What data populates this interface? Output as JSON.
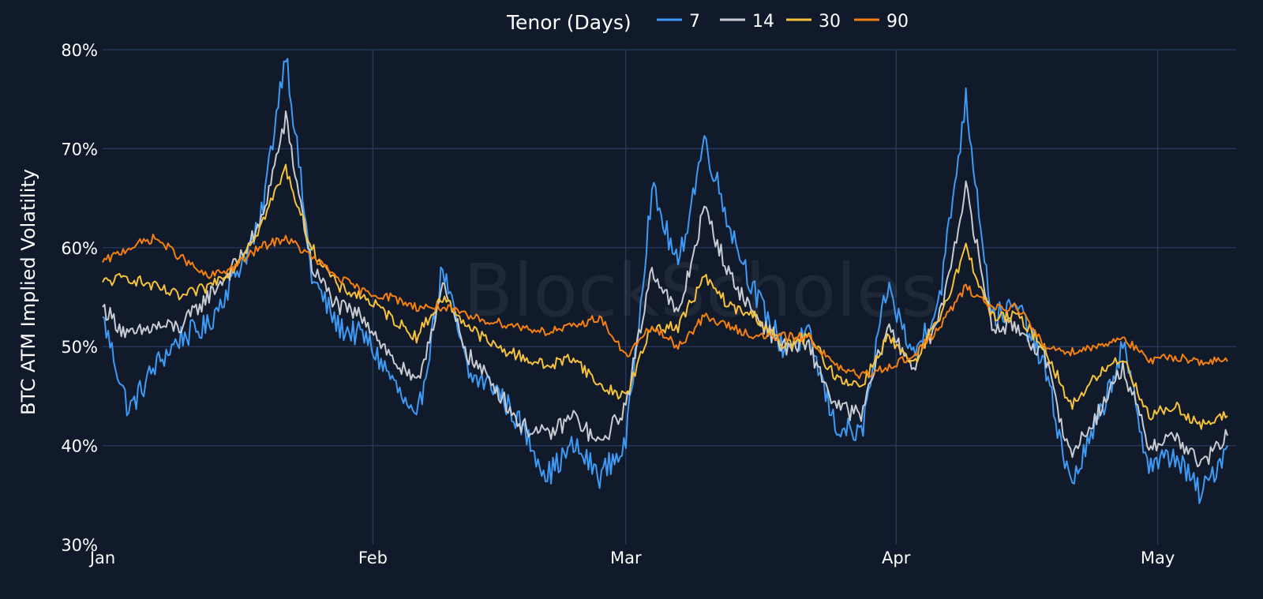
{
  "chart_data": {
    "type": "line",
    "title": "",
    "xlabel": "",
    "ylabel": "BTC ATM Implied Volatility",
    "legend": {
      "title": "Tenor (Days)",
      "placement": "top-center"
    },
    "watermark": "BlockScholes",
    "x_axis": {
      "type": "date",
      "range": [
        "2024-01-01",
        "2024-05-10"
      ],
      "ticks": [
        {
          "date": "2024-01-01",
          "label": "Jan"
        },
        {
          "date": "2024-02-01",
          "label": "Feb"
        },
        {
          "date": "2024-03-01",
          "label": "Mar"
        },
        {
          "date": "2024-04-01",
          "label": "Apr"
        },
        {
          "date": "2024-05-01",
          "label": "May"
        }
      ]
    },
    "y_axis": {
      "range": [
        30,
        80
      ],
      "ticks": [
        {
          "value": 30,
          "label": "30%"
        },
        {
          "value": 40,
          "label": "40%"
        },
        {
          "value": 50,
          "label": "50%"
        },
        {
          "value": 60,
          "label": "60%"
        },
        {
          "value": 70,
          "label": "70%"
        },
        {
          "value": 80,
          "label": "80%"
        }
      ]
    },
    "grid": true,
    "colors": {
      "background": "#101a2b",
      "grid": "#2b3d5f",
      "text": "#ffffff"
    },
    "x": [
      "2024-01-01",
      "2024-01-04",
      "2024-01-07",
      "2024-01-10",
      "2024-01-13",
      "2024-01-16",
      "2024-01-19",
      "2024-01-22",
      "2024-01-25",
      "2024-01-28",
      "2024-01-31",
      "2024-02-03",
      "2024-02-06",
      "2024-02-09",
      "2024-02-12",
      "2024-02-15",
      "2024-02-18",
      "2024-02-21",
      "2024-02-24",
      "2024-02-27",
      "2024-03-01",
      "2024-03-04",
      "2024-03-07",
      "2024-03-10",
      "2024-03-13",
      "2024-03-16",
      "2024-03-19",
      "2024-03-22",
      "2024-03-25",
      "2024-03-28",
      "2024-03-31",
      "2024-04-03",
      "2024-04-06",
      "2024-04-09",
      "2024-04-12",
      "2024-04-15",
      "2024-04-18",
      "2024-04-21",
      "2024-04-24",
      "2024-04-27",
      "2024-04-30",
      "2024-05-03",
      "2024-05-06",
      "2024-05-09"
    ],
    "series": [
      {
        "name": "7",
        "color": "#3d9af5",
        "values": [
          53,
          43.5,
          48,
          51,
          52,
          57,
          62,
          80,
          57,
          52,
          51,
          47,
          42,
          58,
          47,
          46,
          42,
          37,
          40,
          37,
          40,
          66,
          58,
          71,
          62,
          55,
          50,
          51,
          42,
          41,
          56,
          49,
          55,
          75,
          53,
          54,
          48,
          36,
          42,
          50,
          38,
          39,
          35,
          40
        ]
      },
      {
        "name": "14",
        "color": "#c8ccd2",
        "values": [
          54,
          51,
          52,
          52,
          55,
          58,
          62,
          73,
          58,
          54,
          53,
          49,
          46,
          56,
          49,
          46,
          42,
          41,
          43,
          40,
          44,
          58,
          53,
          64,
          57,
          53,
          50,
          50,
          44,
          43,
          52,
          48,
          53,
          66,
          52,
          52,
          49,
          39,
          43,
          48,
          40,
          41,
          38,
          41
        ]
      },
      {
        "name": "30",
        "color": "#f6c23b",
        "values": [
          56.5,
          57,
          56,
          55,
          56,
          58,
          62,
          68,
          60,
          56,
          55,
          53,
          51,
          55,
          52,
          50,
          49,
          48,
          49,
          46,
          45,
          52,
          52,
          57,
          54,
          53,
          50,
          51,
          47,
          46,
          51,
          48,
          53,
          60,
          53,
          53,
          50,
          44,
          47,
          49,
          43,
          44,
          42,
          43
        ]
      },
      {
        "name": "90",
        "color": "#f5800f",
        "values": [
          58.5,
          60,
          61,
          59,
          57,
          58,
          60,
          61,
          59,
          57,
          55.5,
          55,
          54,
          54,
          53,
          52.5,
          52,
          51.5,
          52,
          53,
          49,
          52,
          50,
          53,
          52,
          51,
          51,
          51,
          48,
          47,
          48,
          49,
          52,
          56,
          54,
          54,
          50,
          49.5,
          50,
          51,
          48.5,
          49,
          48.5,
          48.5
        ]
      }
    ]
  }
}
